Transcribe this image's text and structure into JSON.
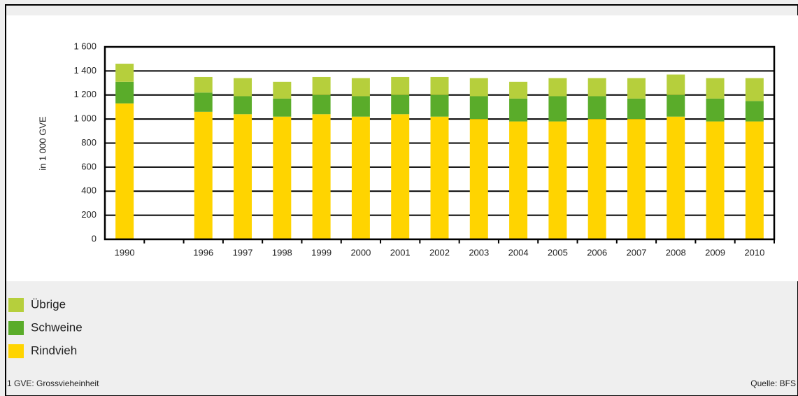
{
  "chart_data": {
    "type": "stacked-bar",
    "y_label": "in 1 000 GVE",
    "categories": [
      "1990",
      null,
      "1996",
      "1997",
      "1998",
      "1999",
      "2000",
      "2001",
      "2002",
      "2003",
      "2004",
      "2005",
      "2006",
      "2007",
      "2008",
      "2009",
      "2010"
    ],
    "series": [
      {
        "name": "Rindvieh",
        "color": "#ffd400",
        "values": [
          1130,
          null,
          1060,
          1040,
          1020,
          1040,
          1020,
          1040,
          1020,
          1000,
          980,
          980,
          1000,
          1000,
          1020,
          980,
          980
        ]
      },
      {
        "name": "Schweine",
        "color": "#5aac2a",
        "values": [
          180,
          null,
          160,
          150,
          150,
          160,
          170,
          160,
          180,
          190,
          190,
          210,
          190,
          170,
          180,
          190,
          170
        ]
      },
      {
        "name": "Übrige",
        "color": "#b6cf3c",
        "values": [
          150,
          null,
          130,
          150,
          140,
          150,
          150,
          150,
          150,
          150,
          140,
          150,
          150,
          170,
          170,
          170,
          190
        ]
      }
    ],
    "ylim": [
      0,
      1600
    ],
    "yticks": [
      0,
      200,
      400,
      600,
      800,
      {
        "value": 1000,
        "label": "1 000"
      },
      {
        "value": 1200,
        "label": "1 200"
      },
      {
        "value": 1400,
        "label": "1 400"
      },
      {
        "value": 1600,
        "label": "1 600"
      }
    ],
    "grid": true,
    "footnote": "1  GVE: Grossvieheinheit",
    "source": "Quelle: BFS"
  }
}
